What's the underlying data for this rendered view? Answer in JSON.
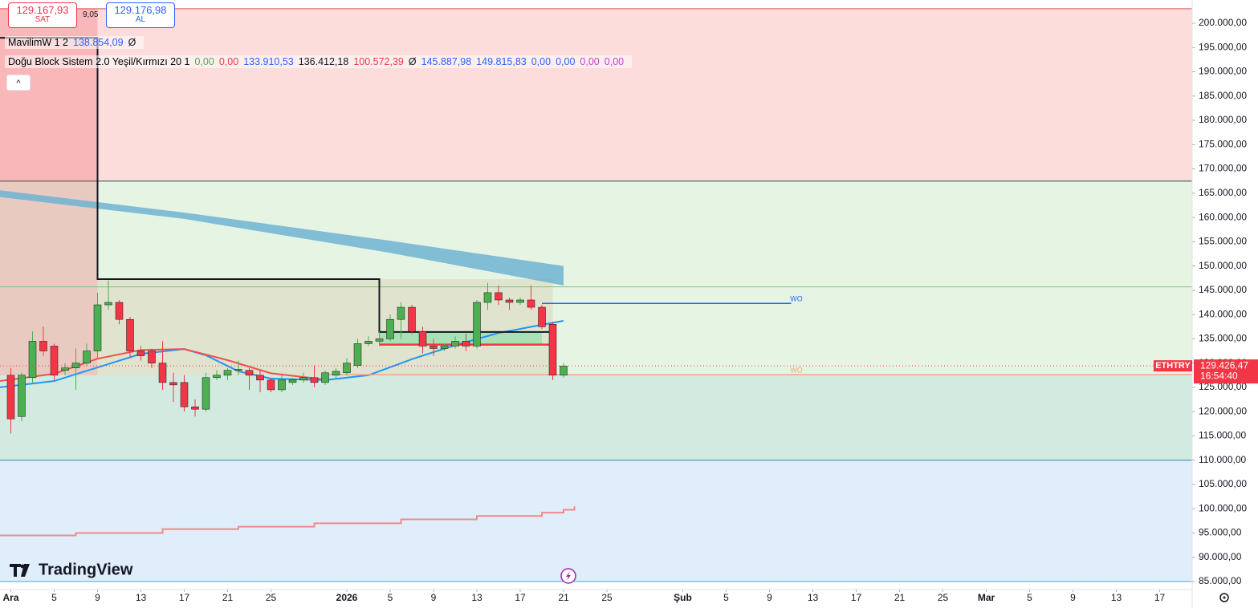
{
  "chart_data": {
    "type": "candlestick",
    "symbol": "ETHTRY",
    "up_color": "#4caf50",
    "down_color": "#f23645",
    "xlim": [
      "2025-11-30",
      "2026-03-20"
    ],
    "ylim": [
      83350,
      204790
    ],
    "yticks": [
      {
        "value": 85000,
        "label": "85.000,00"
      },
      {
        "value": 90000,
        "label": "90.000,00"
      },
      {
        "value": 95000,
        "label": "95.000,00"
      },
      {
        "value": 100000,
        "label": "100.000,00"
      },
      {
        "value": 105000,
        "label": "105.000,00"
      },
      {
        "value": 110000,
        "label": "110.000,00"
      },
      {
        "value": 115000,
        "label": "115.000,00"
      },
      {
        "value": 120000,
        "label": "120.000,00"
      },
      {
        "value": 125000,
        "label": "125.000,00"
      },
      {
        "value": 130000,
        "label": "130.000,00"
      },
      {
        "value": 135000,
        "label": "135.000,00"
      },
      {
        "value": 140000,
        "label": "140.000,00"
      },
      {
        "value": 145000,
        "label": "145.000,00"
      },
      {
        "value": 150000,
        "label": "150.000,00"
      },
      {
        "value": 155000,
        "label": "155.000,00"
      },
      {
        "value": 160000,
        "label": "160.000,00"
      },
      {
        "value": 165000,
        "label": "165.000,00"
      },
      {
        "value": 170000,
        "label": "170.000,00"
      },
      {
        "value": 175000,
        "label": "175.000,00"
      },
      {
        "value": 180000,
        "label": "180.000,00"
      },
      {
        "value": 185000,
        "label": "185.000,00"
      },
      {
        "value": 190000,
        "label": "190.000,00"
      },
      {
        "value": 195000,
        "label": "195.000,00"
      },
      {
        "value": 200000,
        "label": "200.000,00"
      }
    ],
    "xticks": [
      {
        "value": "2025-12-01",
        "label": "Ara"
      },
      {
        "value": "2025-12-05",
        "label": "5"
      },
      {
        "value": "2025-12-09",
        "label": "9"
      },
      {
        "value": "2025-12-13",
        "label": "13"
      },
      {
        "value": "2025-12-17",
        "label": "17"
      },
      {
        "value": "2025-12-21",
        "label": "21"
      },
      {
        "value": "2025-12-25",
        "label": "25"
      },
      {
        "value": "2026-01-01",
        "label": "2026"
      },
      {
        "value": "2026-01-05",
        "label": "5"
      },
      {
        "value": "2026-01-09",
        "label": "9"
      },
      {
        "value": "2026-01-13",
        "label": "13"
      },
      {
        "value": "2026-01-17",
        "label": "17"
      },
      {
        "value": "2026-01-21",
        "label": "21"
      },
      {
        "value": "2026-01-25",
        "label": "25"
      },
      {
        "value": "2026-02-01",
        "label": "Şub"
      },
      {
        "value": "2026-02-05",
        "label": "5"
      },
      {
        "value": "2026-02-09",
        "label": "9"
      },
      {
        "value": "2026-02-13",
        "label": "13"
      },
      {
        "value": "2026-02-17",
        "label": "17"
      },
      {
        "value": "2026-02-21",
        "label": "21"
      },
      {
        "value": "2026-02-25",
        "label": "25"
      },
      {
        "value": "2026-03-01",
        "label": "Mar"
      },
      {
        "value": "2026-03-05",
        "label": "5"
      },
      {
        "value": "2026-03-09",
        "label": "9"
      },
      {
        "value": "2026-03-13",
        "label": "13"
      },
      {
        "value": "2026-03-17",
        "label": "17"
      }
    ],
    "x": [
      "2025-12-01",
      "2025-12-02",
      "2025-12-03",
      "2025-12-04",
      "2025-12-05",
      "2025-12-06",
      "2025-12-07",
      "2025-12-08",
      "2025-12-09",
      "2025-12-10",
      "2025-12-11",
      "2025-12-12",
      "2025-12-13",
      "2025-12-14",
      "2025-12-15",
      "2025-12-16",
      "2025-12-17",
      "2025-12-18",
      "2025-12-19",
      "2025-12-20",
      "2025-12-21",
      "2025-12-22",
      "2025-12-23",
      "2025-12-24",
      "2025-12-25",
      "2025-12-26",
      "2025-12-27",
      "2025-12-28",
      "2025-12-29",
      "2025-12-30",
      "2025-12-31",
      "2026-01-01",
      "2026-01-02",
      "2026-01-03",
      "2026-01-04",
      "2026-01-05",
      "2026-01-06",
      "2026-01-07",
      "2026-01-08",
      "2026-01-09",
      "2026-01-10",
      "2026-01-11",
      "2026-01-12",
      "2026-01-13",
      "2026-01-14",
      "2026-01-15",
      "2026-01-16",
      "2026-01-17",
      "2026-01-18",
      "2026-01-19",
      "2026-01-20",
      "2026-01-21"
    ],
    "open": [
      127500,
      119000,
      127000,
      134500,
      133500,
      128500,
      129000,
      130000,
      132500,
      142000,
      142500,
      139000,
      132500,
      132500,
      130000,
      126000,
      126000,
      121000,
      120500,
      127000,
      127500,
      128500,
      128500,
      127500,
      126500,
      124500,
      126000,
      126500,
      127000,
      126000,
      127500,
      128000,
      129500,
      134000,
      134500,
      135000,
      139000,
      141500,
      136500,
      133500,
      133000,
      133500,
      134500,
      133500,
      142500,
      144500,
      143000,
      142500,
      143000,
      141500,
      138000,
      127500
    ],
    "high": [
      129000,
      128000,
      136500,
      137500,
      134000,
      130000,
      133000,
      134000,
      144500,
      147000,
      143000,
      139500,
      133500,
      133000,
      134500,
      128000,
      127500,
      122500,
      128000,
      128500,
      129000,
      130500,
      129000,
      128500,
      127000,
      127500,
      127000,
      128000,
      129500,
      128500,
      129000,
      131000,
      135000,
      135500,
      136500,
      140000,
      142500,
      142000,
      137500,
      135000,
      134000,
      135500,
      136000,
      143000,
      146500,
      146000,
      143500,
      143500,
      146000,
      142000,
      138500,
      130000
    ],
    "low": [
      115500,
      118000,
      126000,
      131500,
      126500,
      127500,
      124500,
      129500,
      131000,
      141000,
      138000,
      131000,
      130500,
      129000,
      124500,
      122000,
      120000,
      119000,
      120000,
      126500,
      126500,
      127500,
      124500,
      124000,
      124000,
      124000,
      125500,
      126000,
      125000,
      125500,
      127000,
      127500,
      129000,
      133500,
      133500,
      134500,
      135000,
      136000,
      132000,
      131500,
      132500,
      133000,
      132500,
      133000,
      141000,
      142000,
      141000,
      142000,
      141000,
      137000,
      126500,
      127000
    ],
    "close": [
      118500,
      127500,
      134500,
      132500,
      127500,
      129000,
      130000,
      132500,
      142000,
      142500,
      139000,
      132500,
      131500,
      130000,
      126000,
      125500,
      121000,
      120500,
      127000,
      127500,
      128500,
      128700,
      127500,
      126500,
      124500,
      126500,
      126500,
      127000,
      126000,
      128000,
      128300,
      130000,
      134000,
      134500,
      135000,
      139000,
      141500,
      136500,
      133500,
      133000,
      133500,
      134500,
      133500,
      142500,
      144500,
      143000,
      142500,
      143000,
      141500,
      137500,
      127500,
      129400
    ],
    "zones": [
      {
        "low": 167500,
        "high": 203000,
        "fill": "#fddcdc",
        "edge": "#d9534f"
      },
      {
        "low": 110000,
        "high": 167500,
        "fill": "#e6f4e4",
        "edge": "#1b7a6a"
      },
      {
        "low": 85000,
        "high": 110000,
        "fill": "#e0eefb",
        "edge": "#4aa8c8"
      }
    ],
    "boxes": [
      {
        "from": "2025-11-30",
        "to": "2025-12-09",
        "low": 127500,
        "high": 203000,
        "color": "rgba(242,54,69,0.22)"
      },
      {
        "from": "2025-12-09",
        "to": "2026-01-20",
        "low": 127500,
        "high": 147300,
        "color": "rgba(190,140,90,0.16)"
      },
      {
        "from": "2026-01-04",
        "to": "2026-01-19",
        "low": 133800,
        "high": 136400,
        "color": "rgba(60,220,140,0.35)"
      },
      {
        "from": "2025-11-30",
        "to": "2026-03-20",
        "low": 110000,
        "high": 127500,
        "color": "rgba(90,180,200,0.14)"
      }
    ],
    "hlines": [
      {
        "value": 145700,
        "color": "#7cc47e"
      }
    ],
    "cloud": {
      "color": "#6fb3d2",
      "x": [
        "2025-11-30",
        "2025-12-17",
        "2026-01-05",
        "2026-01-21"
      ],
      "upper": [
        165600,
        161000,
        155200,
        150000
      ],
      "lower": [
        164200,
        159700,
        152700,
        146000
      ]
    },
    "lines": [
      {
        "color": "#2196f3",
        "width": 2,
        "step": false,
        "x": [
          "2025-11-30",
          "2025-12-05",
          "2025-12-09",
          "2025-12-13",
          "2025-12-17",
          "2025-12-19",
          "2025-12-22",
          "2025-12-25",
          "2025-12-30",
          "2026-01-03",
          "2026-01-07",
          "2026-01-11",
          "2026-01-15",
          "2026-01-19",
          "2026-01-21"
        ],
        "values": [
          125000,
          126300,
          129100,
          131900,
          132900,
          131600,
          128300,
          126800,
          126500,
          127500,
          130800,
          133700,
          136200,
          137900,
          138700
        ]
      },
      {
        "color": "#f05050",
        "width": 2,
        "step": false,
        "x": [
          "2025-11-30",
          "2025-12-05",
          "2025-12-09",
          "2025-12-13",
          "2025-12-17",
          "2025-12-21",
          "2025-12-25",
          "2025-12-30"
        ],
        "values": [
          126300,
          127800,
          130900,
          132700,
          132900,
          130600,
          127900,
          126600
        ]
      },
      {
        "color": "#f08a8a",
        "width": 2,
        "step": true,
        "x": [
          "2025-11-30",
          "2025-12-07",
          "2025-12-15",
          "2025-12-22",
          "2025-12-29",
          "2026-01-06",
          "2026-01-13",
          "2026-01-19",
          "2026-01-21",
          "2026-01-22"
        ],
        "values": [
          94500,
          95000,
          95800,
          96300,
          97000,
          97800,
          98500,
          99200,
          99800,
          100500
        ]
      },
      {
        "color": "#131722",
        "width": 2,
        "step": false,
        "x": [
          "2025-11-30",
          "2025-12-09",
          "2025-12-09",
          "2026-01-04",
          "2026-01-04",
          "2026-01-20"
        ],
        "values": [
          197000,
          197000,
          147300,
          147300,
          136400,
          136400
        ]
      },
      {
        "color": "#f23645",
        "width": 2.5,
        "step": false,
        "x": [
          "2026-01-04",
          "2026-01-20"
        ],
        "values": [
          133800,
          133800
        ]
      }
    ],
    "levels": [
      {
        "label": "WO",
        "value": 142300,
        "color": "#2962ff",
        "from": "2026-01-19",
        "to": "2026-02-11"
      },
      {
        "label": "WO",
        "value": 127600,
        "color": "#f5a37a",
        "from": "2025-12-30",
        "to": "2026-03-20"
      }
    ],
    "last_price": {
      "value": 129426.47,
      "label": "129.426,47",
      "countdown": "16:54:40",
      "color": "#f23645"
    }
  },
  "ui": {
    "sell_price": "129.167,93",
    "sell": "SAT",
    "spread": "9,05",
    "buy_price": "129.176,98",
    "buy": "AL",
    "logo": "TradingView"
  },
  "legends": [
    {
      "name": "MavilimW 1 2",
      "values": [
        {
          "text": "138.854,09",
          "color": "#2962ff"
        },
        {
          "text": "Ø",
          "color": "#131722"
        }
      ]
    },
    {
      "name": "Doğu Block Sistem 2.0 Yeşil/Kırmızı 20 1",
      "values": [
        {
          "text": "0,00",
          "color": "#4caf50"
        },
        {
          "text": "0,00",
          "color": "#f23645"
        },
        {
          "text": "133.910,53",
          "color": "#2962ff"
        },
        {
          "text": "136.412,18",
          "color": "#131722"
        },
        {
          "text": "100.572,39",
          "color": "#f23645"
        },
        {
          "text": "Ø",
          "color": "#131722"
        },
        {
          "text": "145.887,98",
          "color": "#2962ff"
        },
        {
          "text": "149.815,83",
          "color": "#2962ff"
        },
        {
          "text": "0,00",
          "color": "#2962ff"
        },
        {
          "text": "0,00",
          "color": "#2962ff"
        },
        {
          "text": "0,00",
          "color": "#c040d0"
        },
        {
          "text": "0,00",
          "color": "#c040d0"
        }
      ]
    }
  ]
}
